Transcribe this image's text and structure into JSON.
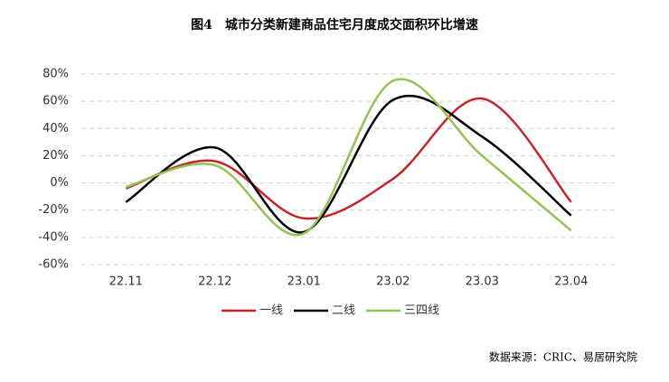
{
  "chart_data": {
    "type": "line",
    "title": "图4　城市分类新建商品住宅月度成交面积环比增速",
    "source": "数据来源：CRIC、易居研究院",
    "categories": [
      "22.11",
      "22.12",
      "23.01",
      "23.02",
      "23.03",
      "23.04"
    ],
    "series": [
      {
        "name": "一线",
        "color": "#c0272d",
        "values": [
          -4,
          16,
          -26,
          3,
          62,
          -14
        ]
      },
      {
        "name": "二线",
        "color": "#000000",
        "values": [
          -14,
          26,
          -36,
          61,
          34,
          -24
        ]
      },
      {
        "name": "三四线",
        "color": "#92c353",
        "values": [
          -3,
          13,
          -37,
          75,
          20,
          -35
        ]
      }
    ],
    "ylim": [
      -60,
      80
    ],
    "yticks": [
      {
        "value": -60,
        "label": "-60%"
      },
      {
        "value": -40,
        "label": "-40%"
      },
      {
        "value": -20,
        "label": "-20%"
      },
      {
        "value": 0,
        "label": "0%"
      },
      {
        "value": 20,
        "label": "20%"
      },
      {
        "value": 40,
        "label": "40%"
      },
      {
        "value": 60,
        "label": "60%"
      },
      {
        "value": 80,
        "label": "80%"
      }
    ],
    "grid": true,
    "smooth": true,
    "legend": "bottom"
  }
}
